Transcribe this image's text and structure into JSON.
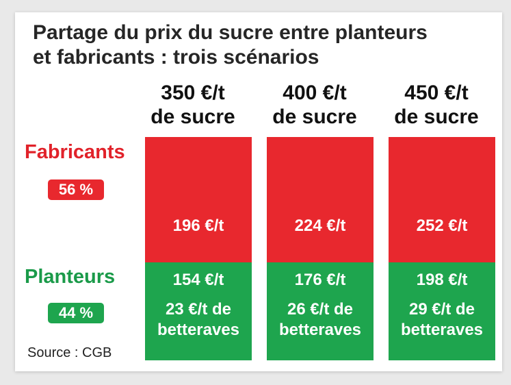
{
  "colors": {
    "fabricants": "#e8282e",
    "planteurs": "#1ea54e",
    "fabricants_label": "#e1222a",
    "planteurs_label": "#1a9a49"
  },
  "chart_data": {
    "type": "bar",
    "stacked": true,
    "title": "Partage du prix du sucre entre planteurs et fabricants : trois scénarios",
    "title_lines": [
      "Partage du prix du sucre entre planteurs",
      "et fabricants : trois scénarios"
    ],
    "categories": [
      "350 €/t de sucre",
      "400 €/t de sucre",
      "450 €/t de sucre"
    ],
    "category_lines": [
      [
        "350 €/t",
        "de sucre"
      ],
      [
        "400 €/t",
        "de sucre"
      ],
      [
        "450 €/t",
        "de sucre"
      ]
    ],
    "series": [
      {
        "name": "Fabricants",
        "share_label": "56 %",
        "share": 56,
        "values": [
          196,
          224,
          252
        ],
        "value_labels": [
          "196 €/t",
          "224 €/t",
          "252 €/t"
        ]
      },
      {
        "name": "Planteurs",
        "share_label": "44 %",
        "share": 44,
        "values": [
          154,
          176,
          198
        ],
        "value_labels": [
          "154 €/t",
          "176 €/t",
          "198 €/t"
        ],
        "beet_values": [
          23,
          26,
          29
        ],
        "beet_label_lines": [
          [
            "23 €/t de",
            "betteraves"
          ],
          [
            "26 €/t de",
            "betteraves"
          ],
          [
            "29 €/t de",
            "betteraves"
          ]
        ]
      }
    ],
    "source": "Source : CGB"
  }
}
